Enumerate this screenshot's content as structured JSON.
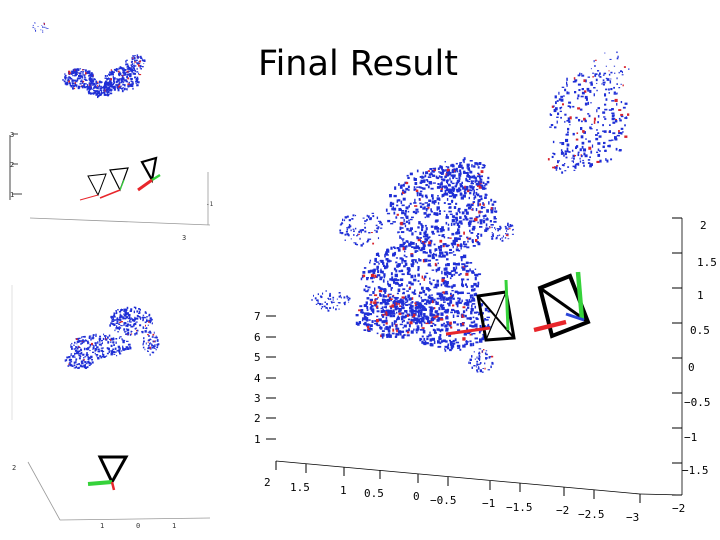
{
  "slide": {
    "title": "Final Result"
  },
  "main_plot": {
    "z_ticks_left": [
      "7",
      "6",
      "5",
      "4",
      "3",
      "2",
      "1"
    ],
    "z_ticks_right": [
      "2",
      "1.5",
      "1",
      "0.5",
      "0",
      "−0.5",
      "−1",
      "−1.5",
      "−2"
    ],
    "x_ticks_bottom": [
      "2",
      "1.5",
      "1",
      "0.5",
      "0",
      "−0.5",
      "−1",
      "−1.5",
      "−2",
      "−2.5",
      "−3"
    ],
    "colors": {
      "points": "#1f2fd6",
      "points_alt": "#d8242e",
      "axis_x": "#e8262b",
      "axis_y": "#35d23a",
      "axis_z": "#2a45d8",
      "camera": "#000000"
    }
  },
  "thumb_top": {
    "ticks_left": [
      "3",
      "2",
      "1"
    ],
    "ticks_bottom": [
      "3",
      "-1"
    ]
  },
  "thumb_bottom": {
    "ticks_left": [
      "2"
    ],
    "ticks_bottom": [
      "1",
      "0",
      "1"
    ]
  }
}
